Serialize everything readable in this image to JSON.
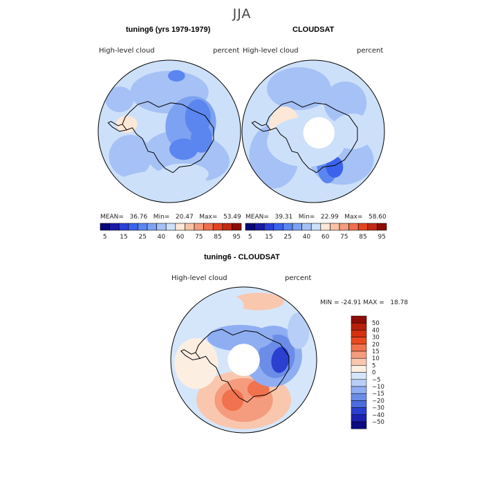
{
  "figure": {
    "season": "JJA",
    "panels": [
      {
        "title": "tuning6 (yrs 1979-1979)",
        "variable": "High-level cloud",
        "units": "percent",
        "stats": "MEAN=   36.76   Min=   20.47   Max=   53.49"
      },
      {
        "title": "CLOUDSAT",
        "variable": "High-level cloud",
        "units": "percent",
        "stats": "MEAN=   39.31   Min=   22.99   Max=   58.60"
      }
    ],
    "diff": {
      "title": "tuning6 - CLOUDSAT",
      "variable": "High-level cloud",
      "units": "percent",
      "stats": "MIN = -24.91 MAX =   18.78"
    }
  },
  "chart_data": [
    {
      "type": "heatmap",
      "projection": "south-polar-stereographic",
      "title": "tuning6 (yrs 1979-1979)",
      "variable": "High-level cloud",
      "units": "percent",
      "mean": 36.76,
      "min": 20.47,
      "max": 53.49,
      "colorbar_ticks": [
        "5",
        "15",
        "25",
        "40",
        "60",
        "75",
        "85",
        "95"
      ]
    },
    {
      "type": "heatmap",
      "projection": "south-polar-stereographic",
      "title": "CLOUDSAT",
      "variable": "High-level cloud",
      "units": "percent",
      "mean": 39.31,
      "min": 22.99,
      "max": 58.6,
      "colorbar_ticks": [
        "5",
        "15",
        "25",
        "40",
        "60",
        "75",
        "85",
        "95"
      ]
    },
    {
      "type": "heatmap",
      "projection": "south-polar-stereographic",
      "title": "tuning6 - CLOUDSAT",
      "variable": "High-level cloud",
      "units": "percent",
      "min": -24.91,
      "max": 18.78,
      "colorbar_ticks": [
        "50",
        "40",
        "30",
        "20",
        "15",
        "10",
        "5",
        "0",
        "−5",
        "−10",
        "−15",
        "−20",
        "−30",
        "−40",
        "−50"
      ]
    }
  ],
  "colors": {
    "abs_scale": [
      "#08087a",
      "#1a1aa8",
      "#2940d6",
      "#3a62ec",
      "#5b86f0",
      "#7ea2f2",
      "#a5c1f5",
      "#cde0f9",
      "#fde7d6",
      "#f9c2a6",
      "#f59c7e",
      "#ef6f4e",
      "#e44520",
      "#c22a10",
      "#8e0c06"
    ],
    "diff_scale": [
      "#8e0c06",
      "#b81f0b",
      "#d6300f",
      "#ea4920",
      "#f1724e",
      "#f59c7e",
      "#f9c7ae",
      "#fdeee2",
      "#d5e6fb",
      "#b7cff7",
      "#8faef2",
      "#6b8de8",
      "#4c6ce0",
      "#2b3fd0",
      "#1c22b0",
      "#0c0c80"
    ],
    "land_outline": "#000000"
  }
}
